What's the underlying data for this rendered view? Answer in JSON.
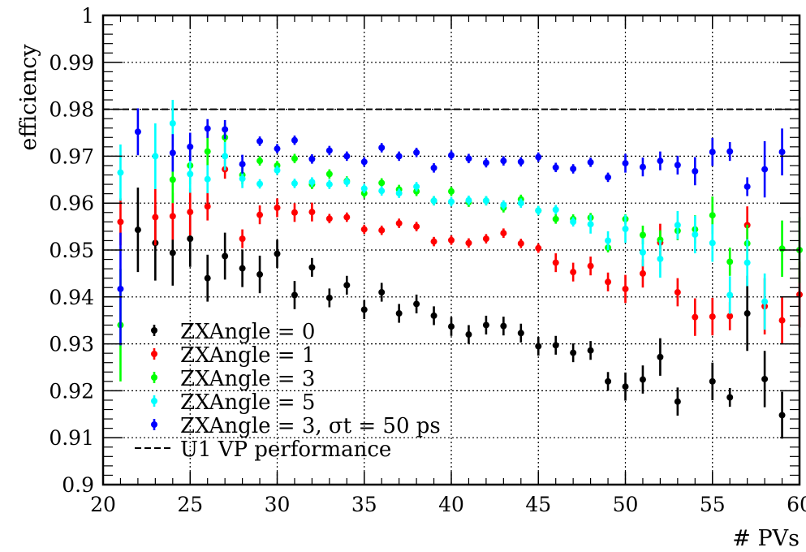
{
  "chart_data": {
    "type": "scatter",
    "title": "",
    "xlabel": "# PVs",
    "ylabel": "efficiency",
    "xlim": [
      20,
      60
    ],
    "ylim": [
      0.9,
      1.0
    ],
    "x_ticks": [
      "20",
      "25",
      "30",
      "35",
      "40",
      "45",
      "50",
      "55",
      "60"
    ],
    "y_ticks": [
      "0.9",
      "0.91",
      "0.92",
      "0.93",
      "0.94",
      "0.95",
      "0.96",
      "0.97",
      "0.98",
      "0.99",
      "1"
    ],
    "grid": true,
    "legend_position": "bottom-left",
    "reference_line": {
      "name": "U1 VP performance",
      "y": 0.98,
      "style": "dashed",
      "color": "#000000"
    },
    "series": [
      {
        "name": "ZXAngle = 0",
        "color": "#000000",
        "x": [
          22,
          23,
          24,
          25,
          26,
          27,
          28,
          29,
          30,
          31,
          32,
          33,
          34,
          35,
          36,
          37,
          38,
          39,
          40,
          41,
          42,
          43,
          44,
          45,
          46,
          47,
          48,
          49,
          50,
          51,
          52,
          53,
          55,
          56,
          57,
          58,
          59
        ],
        "y": [
          0.9543,
          0.9515,
          0.9494,
          0.9524,
          0.944,
          0.9487,
          0.9461,
          0.9448,
          0.9492,
          0.9404,
          0.9463,
          0.9398,
          0.9425,
          0.9373,
          0.941,
          0.9365,
          0.9385,
          0.936,
          0.9337,
          0.932,
          0.934,
          0.9338,
          0.9323,
          0.9295,
          0.9297,
          0.9281,
          0.9286,
          0.922,
          0.9209,
          0.9224,
          0.9272,
          0.9177,
          0.922,
          0.9186,
          0.9365,
          0.9225,
          0.9148
        ],
        "err": [
          0.009,
          0.008,
          0.007,
          0.006,
          0.005,
          0.005,
          0.004,
          0.004,
          0.003,
          0.003,
          0.002,
          0.002,
          0.002,
          0.002,
          0.002,
          0.002,
          0.002,
          0.002,
          0.002,
          0.002,
          0.002,
          0.002,
          0.002,
          0.002,
          0.002,
          0.002,
          0.002,
          0.002,
          0.003,
          0.003,
          0.004,
          0.003,
          0.004,
          0.002,
          0.008,
          0.006,
          0.005
        ]
      },
      {
        "name": "ZXAngle = 1",
        "color": "#ff0000",
        "x": [
          21,
          23,
          24,
          25,
          26,
          27,
          28,
          29,
          30,
          31,
          32,
          33,
          34,
          35,
          36,
          37,
          38,
          39,
          40,
          41,
          42,
          43,
          44,
          45,
          46,
          47,
          48,
          49,
          50,
          51,
          52,
          53,
          54,
          55,
          56,
          57,
          58,
          59,
          60
        ],
        "y": [
          0.956,
          0.957,
          0.9572,
          0.9581,
          0.9593,
          0.9672,
          0.9524,
          0.9575,
          0.959,
          0.958,
          0.9581,
          0.9567,
          0.957,
          0.9544,
          0.9542,
          0.9557,
          0.955,
          0.9518,
          0.9521,
          0.9515,
          0.9524,
          0.9536,
          0.9514,
          0.9504,
          0.9473,
          0.9453,
          0.9466,
          0.9432,
          0.9417,
          0.945,
          0.9516,
          0.941,
          0.9357,
          0.9358,
          0.9359,
          0.9553,
          0.938,
          0.935,
          0.9405
        ],
        "err": [
          0.005,
          0.006,
          0.005,
          0.005,
          0.003,
          0.002,
          0.002,
          0.002,
          0.002,
          0.002,
          0.002,
          0.001,
          0.001,
          0.001,
          0.001,
          0.001,
          0.001,
          0.001,
          0.001,
          0.001,
          0.001,
          0.001,
          0.001,
          0.001,
          0.002,
          0.002,
          0.002,
          0.002,
          0.003,
          0.003,
          0.004,
          0.003,
          0.004,
          0.004,
          0.003,
          0.004,
          0.006,
          0.005,
          0.007
        ]
      },
      {
        "name": "ZXAngle = 3",
        "color": "#00ff00",
        "x": [
          21,
          24,
          25,
          26,
          27,
          28,
          29,
          30,
          31,
          32,
          33,
          34,
          35,
          36,
          37,
          38,
          39,
          40,
          41,
          42,
          43,
          44,
          45,
          46,
          47,
          48,
          49,
          50,
          51,
          52,
          53,
          54,
          55,
          56,
          57,
          59,
          60
        ],
        "y": [
          0.934,
          0.965,
          0.968,
          0.971,
          0.974,
          0.966,
          0.969,
          0.968,
          0.9695,
          0.964,
          0.9662,
          0.9647,
          0.9621,
          0.9643,
          0.9629,
          0.9625,
          0.9605,
          0.9625,
          0.9602,
          0.9605,
          0.959,
          0.9608,
          0.9584,
          0.9566,
          0.9566,
          0.9569,
          0.9505,
          0.9566,
          0.9532,
          0.9522,
          0.9541,
          0.9544,
          0.9574,
          0.9475,
          0.9514,
          0.9503,
          0.95
        ],
        "err": [
          0.012,
          0.005,
          0.004,
          0.003,
          0.003,
          0.002,
          0.001,
          0.001,
          0.001,
          0.001,
          0.001,
          0.001,
          0.001,
          0.001,
          0.001,
          0.001,
          0.001,
          0.001,
          0.001,
          0.001,
          0.001,
          0.001,
          0.001,
          0.001,
          0.001,
          0.001,
          0.001,
          0.001,
          0.002,
          0.002,
          0.002,
          0.003,
          0.004,
          0.003,
          0.004,
          0.006,
          0.007
        ]
      },
      {
        "name": "ZXAngle = 5",
        "color": "#00ffff",
        "x": [
          21,
          23,
          24,
          25,
          26,
          27,
          28,
          29,
          30,
          31,
          32,
          33,
          34,
          35,
          36,
          37,
          38,
          39,
          40,
          41,
          42,
          43,
          44,
          45,
          46,
          47,
          48,
          49,
          50,
          51,
          52,
          53,
          54,
          55,
          56,
          57,
          58
        ],
        "y": [
          0.9665,
          0.97,
          0.977,
          0.9662,
          0.9651,
          0.97,
          0.9652,
          0.9641,
          0.967,
          0.9642,
          0.9645,
          0.964,
          0.9645,
          0.9631,
          0.9626,
          0.9621,
          0.9635,
          0.9605,
          0.9603,
          0.9606,
          0.9605,
          0.9596,
          0.96,
          0.9584,
          0.9586,
          0.956,
          0.9555,
          0.952,
          0.9545,
          0.9495,
          0.9481,
          0.9553,
          0.9533,
          0.9515,
          0.9404,
          0.9473,
          0.939
        ],
        "err": [
          0.006,
          0.007,
          0.005,
          0.004,
          0.003,
          0.003,
          0.002,
          0.001,
          0.001,
          0.001,
          0.001,
          0.001,
          0.001,
          0.001,
          0.001,
          0.001,
          0.001,
          0.001,
          0.001,
          0.001,
          0.001,
          0.001,
          0.001,
          0.001,
          0.001,
          0.001,
          0.002,
          0.002,
          0.003,
          0.003,
          0.004,
          0.003,
          0.004,
          0.004,
          0.004,
          0.005,
          0.006
        ]
      },
      {
        "name": "ZXAngle = 3, σt = 50 ps",
        "color": "#0000ff",
        "x": [
          21,
          22,
          24,
          25,
          26,
          27,
          28,
          29,
          30,
          31,
          32,
          33,
          34,
          35,
          36,
          37,
          38,
          39,
          40,
          41,
          42,
          43,
          44,
          45,
          46,
          47,
          48,
          49,
          50,
          51,
          52,
          53,
          54,
          55,
          56,
          57,
          58,
          59
        ],
        "y": [
          0.9417,
          0.9752,
          0.9707,
          0.972,
          0.9759,
          0.9757,
          0.9683,
          0.9732,
          0.9716,
          0.9734,
          0.9694,
          0.9712,
          0.97,
          0.9688,
          0.9718,
          0.97,
          0.9708,
          0.9675,
          0.9702,
          0.9695,
          0.9686,
          0.969,
          0.9688,
          0.9698,
          0.9676,
          0.9673,
          0.9687,
          0.9655,
          0.9685,
          0.9677,
          0.969,
          0.9681,
          0.9668,
          0.9709,
          0.971,
          0.9635,
          0.9672,
          0.9709
        ],
        "err": [
          0.012,
          0.005,
          0.004,
          0.003,
          0.002,
          0.002,
          0.002,
          0.001,
          0.001,
          0.001,
          0.001,
          0.001,
          0.001,
          0.001,
          0.001,
          0.001,
          0.001,
          0.001,
          0.001,
          0.001,
          0.001,
          0.001,
          0.001,
          0.001,
          0.001,
          0.001,
          0.001,
          0.001,
          0.002,
          0.002,
          0.002,
          0.002,
          0.003,
          0.003,
          0.002,
          0.002,
          0.006,
          0.005
        ]
      }
    ]
  }
}
